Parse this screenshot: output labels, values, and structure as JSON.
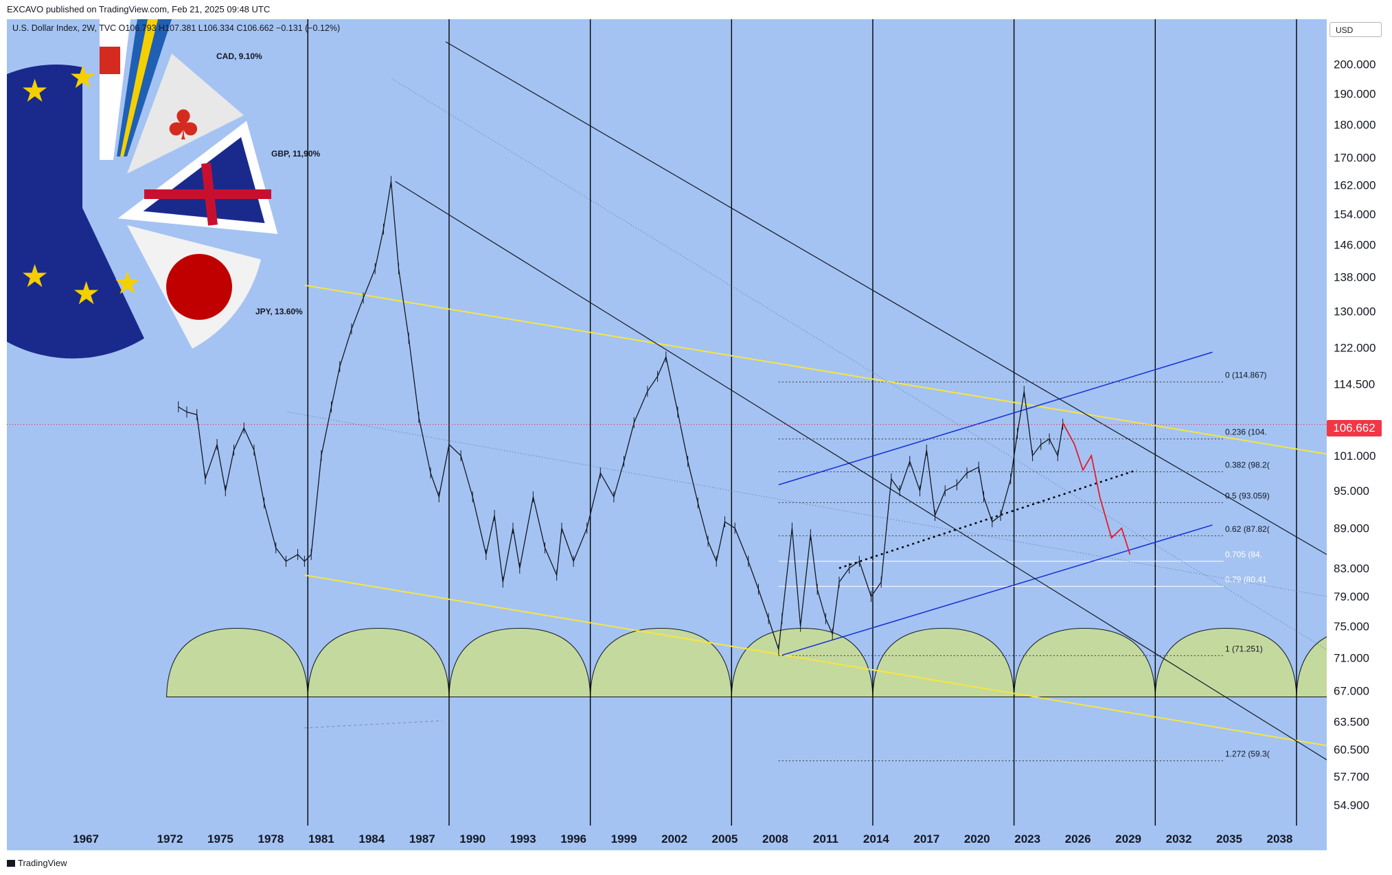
{
  "header": {
    "published": "EXCAVO published on TradingView.com, Feb 21, 2025 09:48 UTC",
    "legend": "U.S. Dollar Index, 2W, TVC  O106.793  H107.381  L106.334  C106.662  −0.131 (−0.12%)"
  },
  "currency_button": "USD",
  "last_price": "106.662",
  "footer": {
    "brand": "TradingView"
  },
  "currency_weights": [
    {
      "label": "CAD, 9.10%"
    },
    {
      "label": "GBP, 11,90%"
    },
    {
      "label": "JPY, 13.60%"
    }
  ],
  "colors": {
    "background": "#a4c3f2",
    "price_line": "#131722",
    "trend_yellow": "#f5e642",
    "channel_blue": "#1a36d6",
    "projection_red": "#e8192c",
    "cycle_fill": "#c4d99e",
    "last_price": "#f23645"
  },
  "chart_data": {
    "type": "line",
    "symbol": "U.S. Dollar Index",
    "interval": "2W",
    "scale": "log",
    "ylim": [
      54.9,
      205
    ],
    "xlim": [
      1962.3,
      2040.8
    ],
    "y_ticks": [
      "200.000",
      "190.000",
      "180.000",
      "170.000",
      "162.000",
      "154.000",
      "146.000",
      "138.000",
      "130.000",
      "122.000",
      "114.500",
      "101.000",
      "95.000",
      "89.000",
      "83.000",
      "79.000",
      "75.000",
      "71.000",
      "67.000",
      "63.500",
      "60.500",
      "57.700",
      "54.900"
    ],
    "x_ticks": [
      "1967",
      "1972",
      "1975",
      "1978",
      "1981",
      "1984",
      "1987",
      "1990",
      "1993",
      "1996",
      "1999",
      "2002",
      "2005",
      "2008",
      "2011",
      "2014",
      "2017",
      "2020",
      "2023",
      "2026",
      "2029",
      "2032",
      "2035",
      "2038"
    ],
    "series": [
      {
        "x": [
          1972.5,
          1973.0,
          1973.6,
          1974.1,
          1974.8,
          1975.3,
          1975.8,
          1976.4,
          1977.0,
          1977.6,
          1978.3,
          1978.9,
          1979.6,
          1980.0,
          1980.4,
          1981.0,
          1981.6,
          1982.1,
          1982.8,
          1983.5,
          1984.2,
          1984.7,
          1985.15,
          1985.6,
          1986.2,
          1986.8,
          1987.5,
          1988.0,
          1988.6,
          1989.3,
          1990.0,
          1990.8,
          1991.3,
          1991.8,
          1992.4,
          1992.8,
          1993.6,
          1994.3,
          1995.0,
          1995.3,
          1996.0,
          1996.8,
          1997.6,
          1998.4,
          1999.0,
          1999.6,
          2000.4,
          2001.0,
          2001.5,
          2002.2,
          2002.8,
          2003.4,
          2004.0,
          2004.5,
          2005.0,
          2005.6,
          2006.4,
          2007.0,
          2007.6,
          2008.2,
          2008.4,
          2009.0,
          2009.5,
          2010.1,
          2010.5,
          2011.0,
          2011.4,
          2011.8,
          2012.4,
          2013.0,
          2013.7,
          2014.3,
          2014.9,
          2015.4,
          2016.0,
          2016.6,
          2017.0,
          2017.5,
          2018.1,
          2018.8,
          2019.4,
          2020.1,
          2020.4,
          2020.9,
          2021.4,
          2022.0,
          2022.4,
          2022.8,
          2023.3,
          2023.8,
          2024.3,
          2024.8,
          2025.1
        ],
        "values": [
          110,
          109,
          108.5,
          97,
          103,
          95,
          102,
          106,
          102,
          93,
          86,
          84,
          85,
          84,
          85,
          101,
          110,
          118,
          126,
          133,
          140,
          150,
          163,
          140,
          124,
          108,
          98,
          94,
          103,
          101,
          94,
          85,
          91,
          81,
          89,
          83,
          94,
          86,
          82,
          89,
          84,
          89,
          98,
          94,
          100,
          107,
          113,
          116,
          120,
          109,
          100,
          93,
          87,
          84,
          90,
          89,
          84,
          80,
          76,
          72,
          76,
          89,
          75,
          88,
          80,
          76,
          74,
          81,
          83,
          84,
          79,
          81,
          97,
          95,
          100,
          95,
          102,
          91,
          95,
          96,
          98,
          99,
          94,
          90,
          91,
          97,
          105,
          113,
          101,
          103,
          104,
          101,
          106.7
        ]
      }
    ],
    "projection": {
      "x": [
        2025.1,
        2025.8,
        2026.3,
        2026.8,
        2027.3,
        2028.0,
        2028.6,
        2029.1
      ],
      "values": [
        107,
        103,
        98.5,
        101,
        94,
        87.5,
        89,
        85
      ]
    },
    "fibonacci": [
      {
        "ratio": "0",
        "price": "114.867",
        "label": "0 (114.867)"
      },
      {
        "ratio": "0.236",
        "price": "104.",
        "label": "0.236 (104."
      },
      {
        "ratio": "0.382",
        "price": "98.2",
        "label": "0.382 (98.2("
      },
      {
        "ratio": "0.5",
        "price": "93.059",
        "label": "0.5 (93.059)"
      },
      {
        "ratio": "0.62",
        "price": "87.82",
        "label": "0.62 (87.82("
      },
      {
        "ratio": "0.705",
        "price": "84.",
        "label": "0.705 (84."
      },
      {
        "ratio": "0.79",
        "price": "80.41",
        "label": "0.79 (80.41"
      },
      {
        "ratio": "1",
        "price": "71.251",
        "label": "1 (71.251)"
      },
      {
        "ratio": "1.272",
        "price": "59.3",
        "label": "1.272 (59.3("
      }
    ],
    "cycle_lines_years": [
      1980.2,
      1988.6,
      1997.0,
      2005.4,
      2013.8,
      2022.2,
      2030.6,
      2039.0
    ],
    "trendlines": [
      {
        "name": "upper yellow",
        "x": [
          1980.0,
          2040.8
        ],
        "values": [
          136,
          101.3
        ]
      },
      {
        "name": "lower yellow",
        "x": [
          1980.0,
          2040.8
        ],
        "values": [
          82,
          60.9
        ]
      },
      {
        "name": "blue channel top",
        "x": [
          2008.2,
          2034.0
        ],
        "values": [
          96,
          121
        ]
      },
      {
        "name": "blue channel bottom",
        "x": [
          2008.4,
          2034.0
        ],
        "values": [
          71.3,
          89.5
        ]
      },
      {
        "name": "dotted support",
        "x": [
          2011.8,
          2029.5
        ],
        "values": [
          83,
          98.5
        ]
      },
      {
        "name": "black line 1",
        "x": [
          1988.4,
          2040.8
        ],
        "values": [
          208,
          85
        ]
      },
      {
        "name": "black line 2",
        "x": [
          1985.4,
          2040.8
        ],
        "values": [
          163,
          59.4
        ]
      }
    ]
  }
}
